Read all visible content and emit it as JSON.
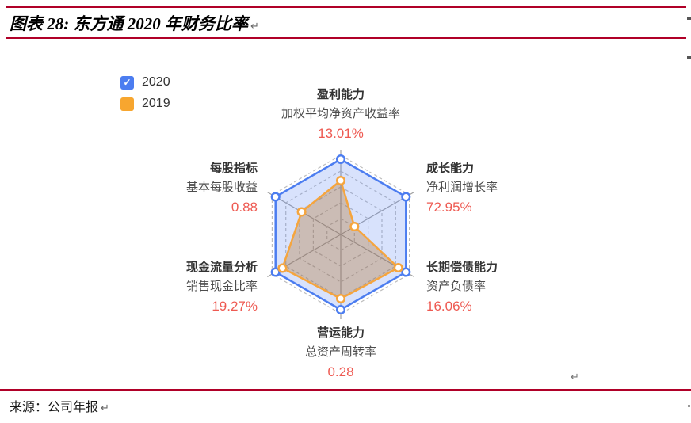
{
  "header": {
    "title": "图表 28: 东方通 2020 年财务比率"
  },
  "marks": {
    "pilcrow": "↵"
  },
  "legend": {
    "items": [
      {
        "label": "2020",
        "color": "#4C7DF0",
        "checked": true,
        "check_glyph": "✓"
      },
      {
        "label": "2019",
        "color": "#F7A62F",
        "checked": false
      }
    ]
  },
  "chart_data": {
    "type": "radar",
    "title": "东方通 2020 年财务比率",
    "axes": [
      {
        "position": "top",
        "category": "盈利能力",
        "indicator": "加权平均净资产收益率",
        "value_label": "13.01%"
      },
      {
        "position": "top-right",
        "category": "成长能力",
        "indicator": "净利润增长率",
        "value_label": "72.95%"
      },
      {
        "position": "bottom-right",
        "category": "长期偿债能力",
        "indicator": "资产负债率",
        "value_label": "16.06%"
      },
      {
        "position": "bottom",
        "category": "营运能力",
        "indicator": "总资产周转率",
        "value_label": "0.28"
      },
      {
        "position": "bottom-left",
        "category": "现金流量分析",
        "indicator": "销售现金比率",
        "value_label": "19.27%"
      },
      {
        "position": "top-left",
        "category": "每股指标",
        "indicator": "基本每股收益",
        "value_label": "0.88"
      }
    ],
    "scale": "values are normalized radius fractions (0-1) read from the plot; only 2020 numeric labels are displayed",
    "series": [
      {
        "name": "2020",
        "color": "#4C7DF0",
        "fill": "rgba(91,134,243,0.24)",
        "values": [
          0.95,
          0.95,
          0.95,
          0.95,
          0.95,
          0.95
        ]
      },
      {
        "name": "2019",
        "color": "#F5A53E",
        "fill": "rgba(176,110,30,0.32)",
        "values": [
          0.68,
          0.2,
          0.84,
          0.81,
          0.85,
          0.57
        ]
      }
    ],
    "rings": [
      0.2,
      0.4,
      0.6,
      0.8,
      1.0
    ],
    "grid": "dashed hexagonal rings, solid gray spoke axes",
    "legend_position": "top-left"
  },
  "footer": {
    "source": "来源：公司年报"
  }
}
